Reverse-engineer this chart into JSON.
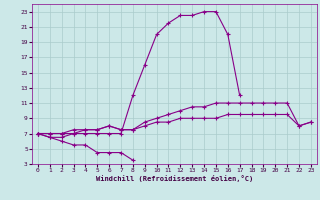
{
  "xlabel": "Windchill (Refroidissement éolien,°C)",
  "bg_color": "#cce8e8",
  "grid_color": "#aacccc",
  "line_color": "#880088",
  "x": [
    0,
    1,
    2,
    3,
    4,
    5,
    6,
    7,
    8,
    9,
    10,
    11,
    12,
    13,
    14,
    15,
    16,
    17,
    18,
    19,
    20,
    21,
    22,
    23
  ],
  "series_peak": [
    7.0,
    7.0,
    7.0,
    7.0,
    7.0,
    7.0,
    7.0,
    7.0,
    12.0,
    16.0,
    20.0,
    21.5,
    22.5,
    22.5,
    23.0,
    23.0,
    20.0,
    12.0,
    null,
    null,
    null,
    null,
    null,
    null
  ],
  "series_top": [
    7.0,
    6.5,
    6.5,
    7.0,
    7.5,
    7.5,
    8.0,
    7.5,
    7.5,
    8.5,
    9.0,
    9.5,
    10.0,
    10.5,
    10.5,
    11.0,
    11.0,
    11.0,
    11.0,
    11.0,
    11.0,
    11.0,
    8.0,
    8.5
  ],
  "series_mid": [
    7.0,
    7.0,
    7.0,
    7.5,
    7.5,
    7.5,
    8.0,
    7.5,
    7.5,
    8.0,
    8.5,
    8.5,
    9.0,
    9.0,
    9.0,
    9.0,
    9.5,
    9.5,
    9.5,
    9.5,
    9.5,
    9.5,
    8.0,
    8.5
  ],
  "series_low": [
    7.0,
    6.5,
    6.0,
    5.5,
    5.5,
    4.5,
    4.5,
    4.5,
    3.5,
    null,
    null,
    null,
    null,
    null,
    null,
    null,
    null,
    null,
    null,
    null,
    null,
    null,
    null,
    null
  ],
  "ylim": [
    3,
    24
  ],
  "yticks": [
    3,
    5,
    7,
    9,
    11,
    13,
    15,
    17,
    19,
    21,
    23
  ],
  "xlim": [
    -0.5,
    23.5
  ],
  "xticks": [
    0,
    1,
    2,
    3,
    4,
    5,
    6,
    7,
    8,
    9,
    10,
    11,
    12,
    13,
    14,
    15,
    16,
    17,
    18,
    19,
    20,
    21,
    22,
    23
  ]
}
